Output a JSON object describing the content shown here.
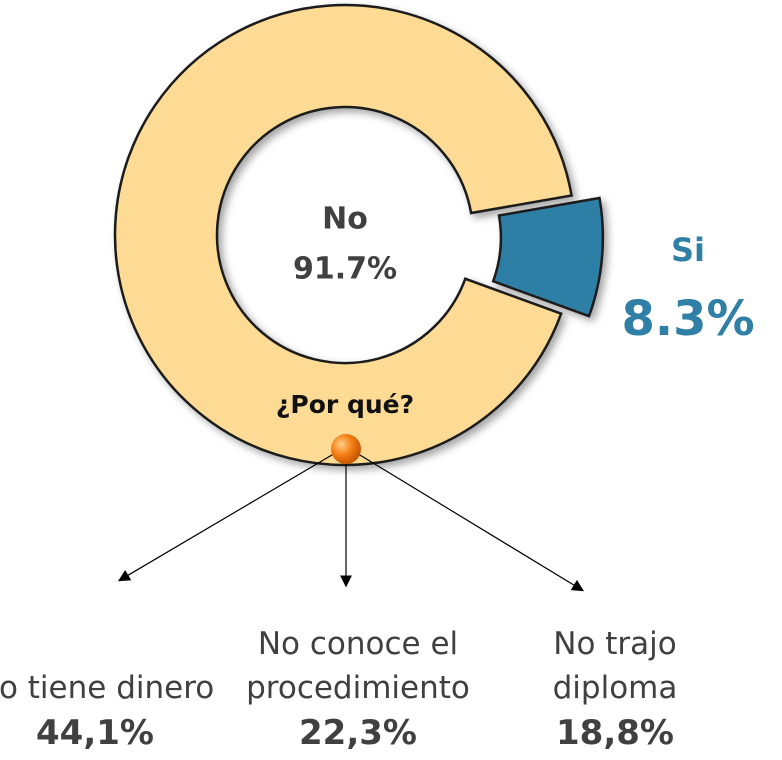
{
  "chart_data": {
    "type": "donut",
    "categories": [
      "No",
      "Si"
    ],
    "values": [
      91.7,
      8.3
    ],
    "value_labels": [
      "91.7%",
      "8.3%"
    ],
    "colors": [
      "#fddb94",
      "#2f7fa6"
    ]
  },
  "breakdown": {
    "title": "¿Por qué?",
    "items": [
      {
        "label": "No tiene dinero",
        "value": 44.1,
        "value_label": "44,1%"
      },
      {
        "label": "No conoce el procedimiento",
        "value": 22.3,
        "value_label": "22,3%"
      },
      {
        "label": "No trajo diploma",
        "value": 18.8,
        "value_label": "18,8%"
      }
    ]
  }
}
